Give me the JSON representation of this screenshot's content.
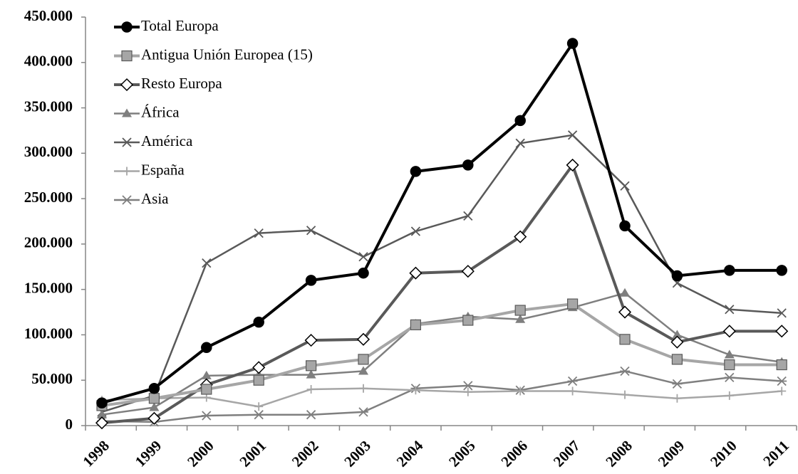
{
  "chart_data": {
    "type": "line",
    "categories": [
      "1998",
      "1999",
      "2000",
      "2001",
      "2002",
      "2003",
      "2004",
      "2005",
      "2006",
      "2007",
      "2008",
      "2009",
      "2010",
      "2011"
    ],
    "ylim": [
      0,
      450000
    ],
    "yticks": [
      {
        "value": 0,
        "label": "0"
      },
      {
        "value": 50000,
        "label": "50.000"
      },
      {
        "value": 100000,
        "label": "100.000"
      },
      {
        "value": 150000,
        "label": "150.000"
      },
      {
        "value": 200000,
        "label": "200.000"
      },
      {
        "value": 250000,
        "label": "250.000"
      },
      {
        "value": 300000,
        "label": "300.000"
      },
      {
        "value": 350000,
        "label": "350.000"
      },
      {
        "value": 400000,
        "label": "400.000"
      },
      {
        "value": 450000,
        "label": "450.000"
      }
    ],
    "legend": "upper left",
    "series": [
      {
        "name": "Total Europa",
        "color": "#000000",
        "marker": "circle",
        "line_width": 4,
        "values": [
          25000,
          41000,
          86000,
          114000,
          160000,
          168000,
          280000,
          287000,
          336000,
          421000,
          220000,
          165000,
          171000,
          171000
        ]
      },
      {
        "name": "Antigua Unión Europea (15)",
        "color": "#a6a6a6",
        "marker": "square",
        "line_width": 4,
        "values": [
          22000,
          30000,
          40000,
          50000,
          66000,
          73000,
          111000,
          116000,
          127000,
          134000,
          95000,
          73000,
          67000,
          67000
        ]
      },
      {
        "name": "Resto Europa",
        "color": "#595959",
        "marker": "diamond",
        "line_width": 4,
        "values": [
          3000,
          8000,
          45000,
          64000,
          94000,
          95000,
          168000,
          170000,
          208000,
          287000,
          125000,
          92000,
          104000,
          104000
        ]
      },
      {
        "name": "África",
        "color": "#7f7f7f",
        "marker": "triangle",
        "line_width": 2.5,
        "values": [
          12000,
          20000,
          55000,
          56000,
          56000,
          60000,
          112000,
          120000,
          117000,
          130000,
          146000,
          100000,
          78000,
          70000
        ]
      },
      {
        "name": "América",
        "color": "#595959",
        "marker": "x",
        "line_width": 2.5,
        "values": [
          15000,
          33000,
          179000,
          212000,
          215000,
          186000,
          214000,
          231000,
          311000,
          320000,
          264000,
          157000,
          128000,
          124000
        ]
      },
      {
        "name": "España",
        "color": "#a6a6a6",
        "marker": "plus",
        "line_width": 2.5,
        "values": [
          28000,
          30000,
          31000,
          21000,
          40000,
          41000,
          39000,
          37000,
          38000,
          38000,
          34000,
          30000,
          33000,
          38000
        ]
      },
      {
        "name": "Asia",
        "color": "#7f7f7f",
        "marker": "asterisk",
        "line_width": 2.5,
        "values": [
          5000,
          4000,
          11000,
          12000,
          12000,
          15000,
          41000,
          44000,
          39000,
          49000,
          60000,
          46000,
          53000,
          49000
        ]
      }
    ]
  }
}
